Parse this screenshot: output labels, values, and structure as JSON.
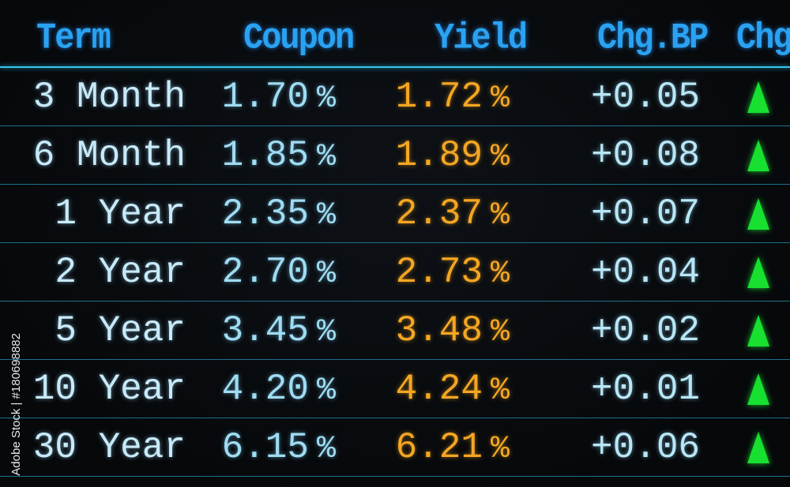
{
  "header": {
    "term": "Term",
    "coupon": "Coupon",
    "yield": "Yield",
    "chg_bp": "Chg.BP",
    "chg": "Chg"
  },
  "rows": [
    {
      "term": "3 Month",
      "coupon": "1.70",
      "yield": "1.72",
      "chg_bp": "+0.05",
      "direction": "up"
    },
    {
      "term": "6 Month",
      "coupon": "1.85",
      "yield": "1.89",
      "chg_bp": "+0.08",
      "direction": "up"
    },
    {
      "term": "1 Year",
      "coupon": "2.35",
      "yield": "2.37",
      "chg_bp": "+0.07",
      "direction": "up"
    },
    {
      "term": "2 Year",
      "coupon": "2.70",
      "yield": "2.73",
      "chg_bp": "+0.04",
      "direction": "up"
    },
    {
      "term": "5 Year",
      "coupon": "3.45",
      "yield": "3.48",
      "chg_bp": "+0.02",
      "direction": "up"
    },
    {
      "term": "10 Year",
      "coupon": "4.20",
      "yield": "4.24",
      "chg_bp": "+0.01",
      "direction": "up"
    },
    {
      "term": "30 Year",
      "coupon": "6.15",
      "yield": "6.21",
      "chg_bp": "+0.06",
      "direction": "up"
    }
  ],
  "percent_sign": "%",
  "watermark": "Adobe Stock | #180698882",
  "colors": {
    "header": "#2aa2f2",
    "yield": "#f4a623",
    "up": "#18e030",
    "value": "#9fdcf2"
  }
}
